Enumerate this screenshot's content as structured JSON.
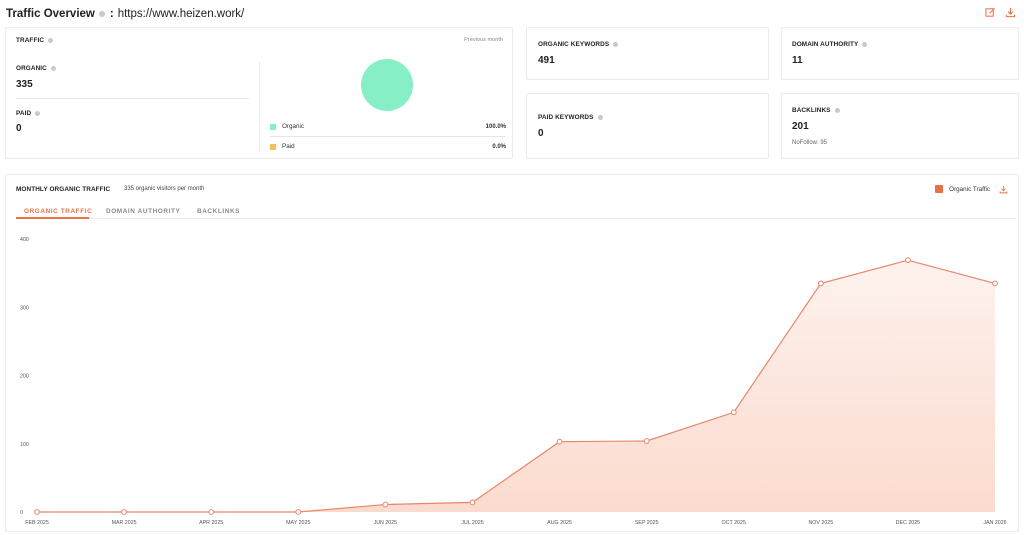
{
  "header": {
    "title": "Traffic Overview",
    "separator": ":",
    "url": "https://www.heizen.work/"
  },
  "traffic": {
    "label": "TRAFFIC",
    "period": "Previous month",
    "organic_label": "ORGANIC",
    "organic_value": "335",
    "paid_label": "PAID",
    "paid_value": "0",
    "legend": [
      {
        "name": "Organic",
        "pct": "100.0%",
        "color": "#86efc5"
      },
      {
        "name": "Paid",
        "pct": "0.0%",
        "color": "#f6be5e"
      }
    ]
  },
  "metrics": {
    "organic_keywords": {
      "label": "ORGANIC KEYWORDS",
      "value": "491"
    },
    "paid_keywords": {
      "label": "PAID KEYWORDS",
      "value": "0"
    },
    "domain_authority": {
      "label": "DOMAIN AUTHORITY",
      "value": "11"
    },
    "backlinks": {
      "label": "BACKLINKS",
      "value": "201",
      "nofollow": "NoFollow: 95"
    }
  },
  "monthly": {
    "title": "MONTHLY ORGANIC TRAFFIC",
    "subtitle": "335 organic visitors per month",
    "legend_label": "Organic Traffic",
    "tabs": [
      "ORGANIC TRAFFIC",
      "DOMAIN AUTHORITY",
      "BACKLINKS"
    ]
  },
  "chart_data": {
    "type": "area",
    "categories": [
      "FEB 2025",
      "MAR 2025",
      "APR 2025",
      "MAY 2025",
      "JUN 2025",
      "JUL 2025",
      "AUG 2025",
      "SEP 2025",
      "OCT 2025",
      "NOV 2025",
      "DEC 2025",
      "JAN 2026"
    ],
    "series": [
      {
        "name": "Organic Traffic",
        "values": [
          0,
          0,
          0,
          0,
          11,
          14,
          103,
          104,
          146,
          335,
          369,
          335
        ],
        "color": "#e8704a"
      }
    ],
    "yticks": [
      0,
      100,
      200,
      300,
      400
    ],
    "ylim": [
      0,
      400
    ],
    "grid": false
  }
}
